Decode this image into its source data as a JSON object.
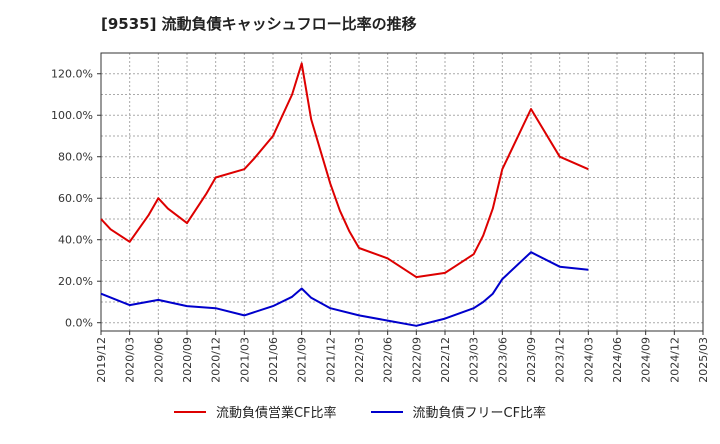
{
  "chart_data": {
    "type": "line",
    "title": "[9535]  流動負債キャッシュフロー比率の推移",
    "xlabel": "",
    "ylabel": "",
    "x_ticks": [
      "2019/12",
      "2020/03",
      "2020/06",
      "2020/09",
      "2020/12",
      "2021/03",
      "2021/06",
      "2021/09",
      "2021/12",
      "2022/03",
      "2022/06",
      "2022/09",
      "2022/12",
      "2023/03",
      "2023/06",
      "2023/09",
      "2023/12",
      "2024/03",
      "2024/06",
      "2024/09",
      "2024/12",
      "2025/03"
    ],
    "y_ticks": [
      "0.0%",
      "20.0%",
      "40.0%",
      "60.0%",
      "80.0%",
      "100.0%",
      "120.0%"
    ],
    "ylim": [
      -4,
      130
    ],
    "grid": true,
    "legend_position": "bottom",
    "colors": {
      "series_1": "#dd0000",
      "series_2": "#0000cc"
    },
    "series": [
      {
        "name": "流動負債営業CF比率",
        "color": "#dd0000",
        "x": [
          "2019/12",
          "2020/01",
          "2020/03",
          "2020/05",
          "2020/06",
          "2020/07",
          "2020/09",
          "2020/11",
          "2020/12",
          "2021/03",
          "2021/04",
          "2021/06",
          "2021/08",
          "2021/09",
          "2021/10",
          "2021/12",
          "2022/01",
          "2022/02",
          "2022/03",
          "2022/06",
          "2022/09",
          "2022/12",
          "2023/01",
          "2023/03",
          "2023/04",
          "2023/05",
          "2023/06",
          "2023/09",
          "2023/12",
          "2024/03"
        ],
        "values": [
          50,
          45,
          39,
          52,
          60,
          55,
          48,
          62,
          70,
          74,
          79,
          90,
          110,
          125,
          98,
          67,
          54,
          44,
          36,
          31,
          22,
          24,
          27,
          33,
          42,
          55,
          74,
          103,
          80,
          74
        ]
      },
      {
        "name": "流動負債フリーCF比率",
        "color": "#0000cc",
        "x": [
          "2019/12",
          "2020/03",
          "2020/06",
          "2020/09",
          "2020/12",
          "2021/03",
          "2021/06",
          "2021/08",
          "2021/09",
          "2021/10",
          "2021/12",
          "2022/03",
          "2022/06",
          "2022/09",
          "2022/12",
          "2023/03",
          "2023/04",
          "2023/05",
          "2023/06",
          "2023/09",
          "2023/12",
          "2024/03"
        ],
        "values": [
          14,
          8.5,
          11,
          8,
          7,
          3.5,
          8,
          12.5,
          16.5,
          12,
          7,
          3.5,
          1,
          -1.5,
          2,
          7,
          10,
          14,
          21,
          34,
          27,
          25.5
        ]
      }
    ]
  }
}
